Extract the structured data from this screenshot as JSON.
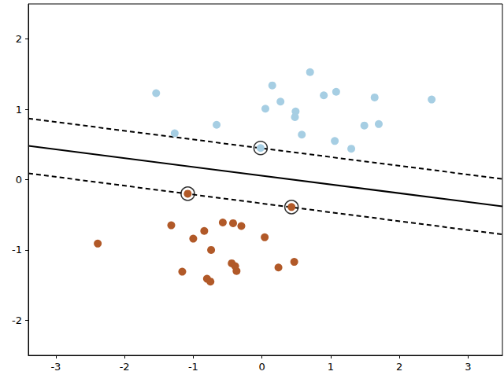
{
  "chart_data": {
    "type": "scatter",
    "xlim": [
      -3.4,
      3.5
    ],
    "ylim": [
      -2.5,
      2.5
    ],
    "xticks": [
      -3,
      -2,
      -1,
      0,
      1,
      2,
      3
    ],
    "yticks": [
      -2,
      -1,
      0,
      1,
      2
    ],
    "grid": false,
    "series": [
      {
        "type": "scatter",
        "marker": "circle",
        "color": "#a6cee3",
        "x": [
          -1.54,
          -1.27,
          -0.66,
          0.15,
          0.27,
          0.05,
          0.49,
          0.48,
          0.7,
          0.58,
          0.9,
          1.08,
          1.06,
          1.3,
          1.49,
          1.64,
          1.7,
          2.47,
          -0.02
        ],
        "values": [
          1.23,
          0.66,
          0.78,
          1.34,
          1.11,
          1.01,
          0.97,
          0.89,
          1.53,
          0.64,
          1.2,
          1.25,
          0.55,
          0.44,
          0.77,
          1.17,
          0.79,
          1.14,
          0.45
        ]
      },
      {
        "type": "scatter",
        "marker": "circle",
        "color": "#b15928",
        "x": [
          -2.39,
          -1.32,
          -1.0,
          -0.84,
          -0.74,
          -0.57,
          -0.42,
          -0.3,
          0.04,
          -1.16,
          -0.8,
          -0.75,
          -0.44,
          -0.39,
          -0.37,
          0.24,
          0.47,
          -1.08,
          0.43
        ],
        "values": [
          -0.91,
          -0.65,
          -0.84,
          -0.73,
          -1.0,
          -0.61,
          -0.62,
          -0.66,
          -0.82,
          -1.31,
          -1.41,
          -1.45,
          -1.19,
          -1.23,
          -1.3,
          -1.25,
          -1.17,
          -0.2,
          -0.39
        ]
      },
      {
        "type": "line",
        "line_style": "solid",
        "color": "#000000",
        "x": [
          -3.4,
          3.5
        ],
        "values": [
          0.48,
          -0.38
        ]
      },
      {
        "type": "line",
        "line_style": "dashed",
        "color": "#000000",
        "x": [
          -3.4,
          3.5
        ],
        "values": [
          0.87,
          0.01
        ]
      },
      {
        "type": "line",
        "line_style": "dashed",
        "color": "#000000",
        "x": [
          -3.4,
          3.5
        ],
        "values": [
          0.09,
          -0.78
        ]
      },
      {
        "type": "scatter",
        "marker": "circle-open",
        "color": "#000000",
        "x": [
          -0.02,
          -1.08,
          0.43
        ],
        "values": [
          0.45,
          -0.2,
          -0.39
        ]
      }
    ]
  }
}
